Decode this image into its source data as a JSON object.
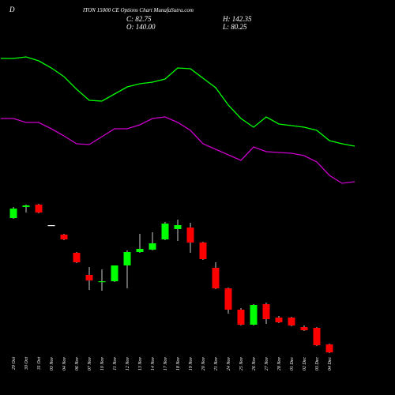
{
  "chart_data": {
    "type": "candlestick",
    "title": "ITON 15000  CE Options Chart MunafaSutra.com",
    "symbol": "D",
    "annotations": [
      "C: 82.75",
      "H: 142.35",
      "O: 140.00",
      "L: 80.25"
    ],
    "ylim": [
      0,
      500
    ],
    "up_color": "#00ff00",
    "down_color": "#ff0000",
    "categories": [
      "29 Oct",
      "30 Oct",
      "31 Oct",
      "03 Nov",
      "04 Nov",
      "06 Nov",
      "07 Nov",
      "10 Nov",
      "11 Nov",
      "12 Nov",
      "13 Nov",
      "14 Nov",
      "17 Nov",
      "18 Nov",
      "19 Nov",
      "20 Nov",
      "21 Nov",
      "24 Nov",
      "25 Nov",
      "26 Nov",
      "27 Nov",
      "28 Nov",
      "01 Dec",
      "02 Dec",
      "03 Dec",
      "04 Dec"
    ],
    "open": [
      224,
      238,
      241,
      215,
      203,
      180,
      152,
      143,
      144,
      164,
      181,
      184,
      197,
      210,
      212,
      193,
      161,
      135,
      108,
      89,
      115,
      98,
      98,
      86,
      85,
      64
    ],
    "close": [
      236,
      240,
      231,
      215,
      197,
      168,
      145,
      144,
      164,
      181,
      185,
      192,
      217,
      215,
      193,
      172,
      135,
      108,
      89,
      114,
      96,
      92,
      88,
      82,
      63,
      54
    ],
    "high": [
      238,
      241,
      242,
      215,
      204,
      181,
      162,
      159,
      164,
      183,
      204,
      206,
      219,
      222,
      218,
      194,
      168,
      136,
      110,
      115,
      117,
      100,
      99,
      88,
      86,
      65
    ],
    "low": [
      223,
      231,
      230,
      215,
      196,
      167,
      133,
      132,
      143,
      135,
      180,
      183,
      196,
      195,
      180,
      171,
      134,
      103,
      88,
      88,
      90,
      91,
      87,
      81,
      62,
      53
    ],
    "lines": [
      {
        "color": "#00ff00",
        "x": [
          -1,
          0,
          1,
          2,
          3,
          4,
          5,
          6,
          7,
          8,
          9,
          10,
          11,
          12,
          13,
          14,
          15,
          16,
          17,
          18,
          19,
          20,
          21,
          22,
          23,
          24,
          25,
          26,
          27
        ],
        "values": [
          426,
          426,
          428,
          423,
          414,
          403,
          387,
          373,
          372,
          381,
          390,
          394,
          396,
          400,
          414,
          413,
          401,
          389,
          367,
          350,
          339,
          352,
          343,
          341,
          339,
          335,
          322,
          318,
          315
        ]
      },
      {
        "color": "#cc00cc",
        "x": [
          -1,
          0,
          1,
          2,
          3,
          4,
          5,
          6,
          7,
          8,
          9,
          10,
          11,
          12,
          13,
          14,
          15,
          16,
          17,
          18,
          19,
          20,
          21,
          22,
          23,
          24,
          25,
          26,
          27
        ],
        "values": [
          350,
          350,
          345,
          345,
          337,
          328,
          318,
          317,
          327,
          337,
          337,
          342,
          350,
          352,
          345,
          335,
          318,
          311,
          304,
          297,
          314,
          308,
          307,
          306,
          303,
          295,
          278,
          268,
          270
        ]
      }
    ]
  }
}
